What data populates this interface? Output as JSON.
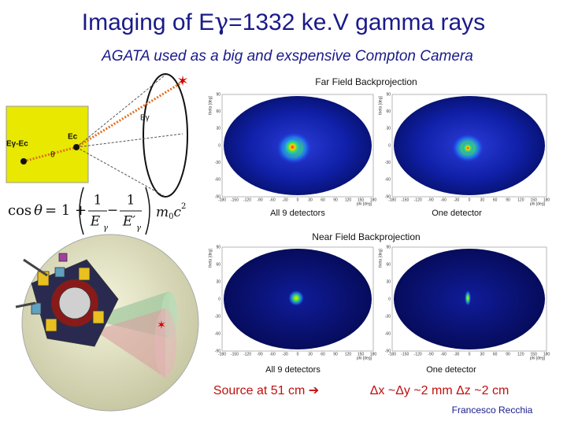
{
  "title": {
    "before": "Imaging of E",
    "symbol": "γ",
    "after": "=1332 ke.V gamma rays"
  },
  "subtitle": "AGATA used as a big and exspensive Compton Camera",
  "diagram": {
    "labels": [
      "Eγ-Ec",
      "Ec",
      "θ",
      "Eγ"
    ]
  },
  "formula": {
    "lhs": "cos",
    "theta": "θ",
    "eq": "= 1 +",
    "one": "1",
    "e": "E",
    "g": "γ",
    "e2": "E′",
    "m": "m",
    "zero": "0",
    "c": "c",
    "two": "2"
  },
  "plot_axes": {
    "y_label": "theta [deg]",
    "x_label": "phi [deg]",
    "yticks": [
      90,
      60,
      30,
      0,
      -30,
      -60,
      -90
    ],
    "xticks": [
      -180,
      -150,
      -120,
      -90,
      -60,
      -30,
      0,
      30,
      60,
      90,
      120,
      150,
      180
    ]
  },
  "far_field": {
    "title": "Far Field Backprojection",
    "captions": [
      "All 9 detectors",
      "One detector"
    ]
  },
  "near_field": {
    "title": "Near Field Backprojection",
    "captions": [
      "All 9 detectors",
      "One detector"
    ]
  },
  "source_note": "Source at 51 cm ➔",
  "resolution": "Δx ~Δy ~2 mm  Δz ~2 cm",
  "author": "Francesco Recchia"
}
